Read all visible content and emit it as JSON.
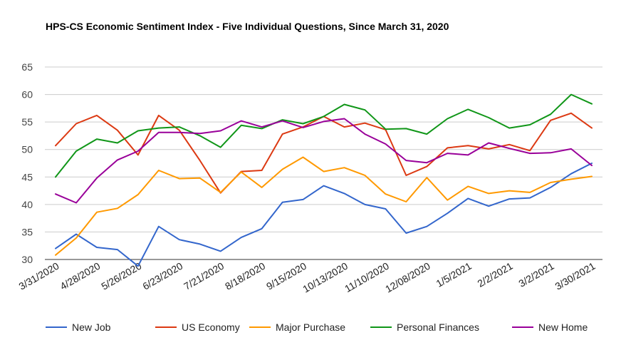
{
  "chart_data": {
    "type": "line",
    "title": "HPS-CS Economic Sentiment Index - Five Individual Questions, Since March 31, 2020",
    "xlabel": "",
    "ylabel": "",
    "ylim": [
      30,
      65
    ],
    "yticks": [
      30,
      35,
      40,
      45,
      50,
      55,
      60,
      65
    ],
    "grid": true,
    "legend_position": "bottom",
    "x_tick_labels": [
      "3/31/2020",
      "4/28/2020",
      "5/26/2020",
      "6/23/2020",
      "7/21/2020",
      "8/18/2020",
      "9/15/2020",
      "10/13/2020",
      "11/10/2020",
      "12/08/2020",
      "1/5/2021",
      "2/2/2021",
      "3/2/2021",
      "3/30/2021"
    ],
    "x_tick_every": 2,
    "series": [
      {
        "name": "New Job",
        "color": "#3366cc",
        "values": [
          32.0,
          34.6,
          32.2,
          31.8,
          28.8,
          36.0,
          33.6,
          32.8,
          31.5,
          34.0,
          35.6,
          40.4,
          40.9,
          43.4,
          42.0,
          40.0,
          39.2,
          34.8,
          36.0,
          38.4,
          41.1,
          39.7,
          41.0,
          41.2,
          43.1,
          45.6,
          47.5
        ]
      },
      {
        "name": "US Economy",
        "color": "#dc3912",
        "values": [
          50.7,
          54.7,
          56.2,
          53.5,
          49.0,
          56.2,
          53.5,
          48.0,
          42.1,
          46.0,
          46.2,
          52.8,
          54.1,
          56.0,
          54.1,
          54.8,
          53.6,
          45.3,
          46.9,
          50.3,
          50.7,
          50.1,
          50.9,
          49.8,
          55.3,
          56.6,
          53.9
        ]
      },
      {
        "name": "Major Purchase",
        "color": "#ff9900",
        "values": [
          30.8,
          33.9,
          38.6,
          39.3,
          41.8,
          46.2,
          44.7,
          44.8,
          42.2,
          45.9,
          43.1,
          46.4,
          48.6,
          46.0,
          46.7,
          45.3,
          41.9,
          40.5,
          44.9,
          40.8,
          43.3,
          42.0,
          42.5,
          42.2,
          44.0,
          44.6,
          45.1
        ]
      },
      {
        "name": "Personal Finances",
        "color": "#109618",
        "values": [
          45.0,
          49.7,
          51.9,
          51.2,
          53.4,
          53.9,
          54.1,
          52.5,
          50.4,
          54.4,
          53.8,
          55.4,
          54.7,
          56.0,
          58.2,
          57.2,
          53.7,
          53.8,
          52.8,
          55.6,
          57.3,
          55.8,
          53.9,
          54.5,
          56.4,
          60.0,
          58.3
        ]
      },
      {
        "name": "New Home",
        "color": "#990099",
        "values": [
          41.9,
          40.3,
          44.8,
          48.1,
          49.7,
          53.1,
          53.1,
          52.9,
          53.4,
          55.2,
          54.1,
          55.2,
          54.0,
          55.1,
          55.6,
          52.8,
          51.0,
          48.0,
          47.6,
          49.3,
          49.0,
          51.2,
          50.2,
          49.3,
          49.4,
          50.1,
          47.1
        ]
      }
    ]
  }
}
